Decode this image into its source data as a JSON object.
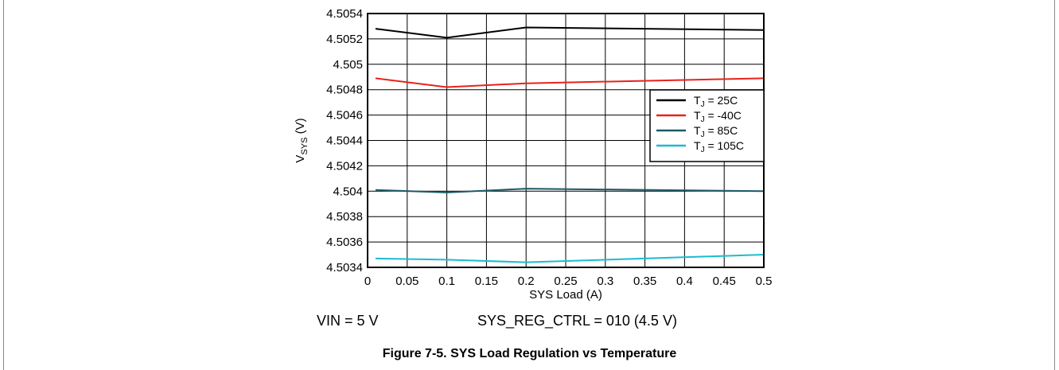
{
  "chart_data": {
    "type": "line",
    "title": "",
    "xlabel": "SYS Load (A)",
    "ylabel_main": "V",
    "ylabel_sub": "SYS",
    "ylabel_unit": " (V)",
    "xlim": [
      0,
      0.5
    ],
    "ylim": [
      4.5034,
      4.5054
    ],
    "x_ticks": [
      "0",
      "0.05",
      "0.1",
      "0.15",
      "0.2",
      "0.25",
      "0.3",
      "0.35",
      "0.4",
      "0.45",
      "0.5"
    ],
    "y_ticks": [
      "4.5034",
      "4.5036",
      "4.5038",
      "4.504",
      "4.5042",
      "4.5044",
      "4.5046",
      "4.5048",
      "4.505",
      "4.5052",
      "4.5054"
    ],
    "grid": true,
    "legend_position": "right",
    "x": [
      0.01,
      0.1,
      0.2,
      0.5
    ],
    "series": [
      {
        "name": "T_J = 25C",
        "label_main": "T",
        "label_sub": "J",
        "label_rest": " = 25C",
        "color": "#000000",
        "values": [
          4.50528,
          4.50521,
          4.50529,
          4.50527
        ]
      },
      {
        "name": "T_J = -40C",
        "label_main": "T",
        "label_sub": "J",
        "label_rest": " = -40C",
        "color": "#e8221b",
        "values": [
          4.50489,
          4.50482,
          4.50485,
          4.50489
        ]
      },
      {
        "name": "T_J = 85C",
        "label_main": "T",
        "label_sub": "J",
        "label_rest": " = 85C",
        "color": "#1c5a66",
        "values": [
          4.50401,
          4.50399,
          4.50402,
          4.504
        ]
      },
      {
        "name": "T_J = 105C",
        "label_main": "T",
        "label_sub": "J",
        "label_rest": " = 105C",
        "color": "#1bbcd0",
        "values": [
          4.50347,
          4.50346,
          4.50344,
          4.5035
        ]
      }
    ]
  },
  "conditions": {
    "vin": "VIN = 5 V",
    "sys_reg_ctrl": "SYS_REG_CTRL = 010 (4.5 V)"
  },
  "caption": "Figure 7-5. SYS Load Regulation vs Temperature"
}
